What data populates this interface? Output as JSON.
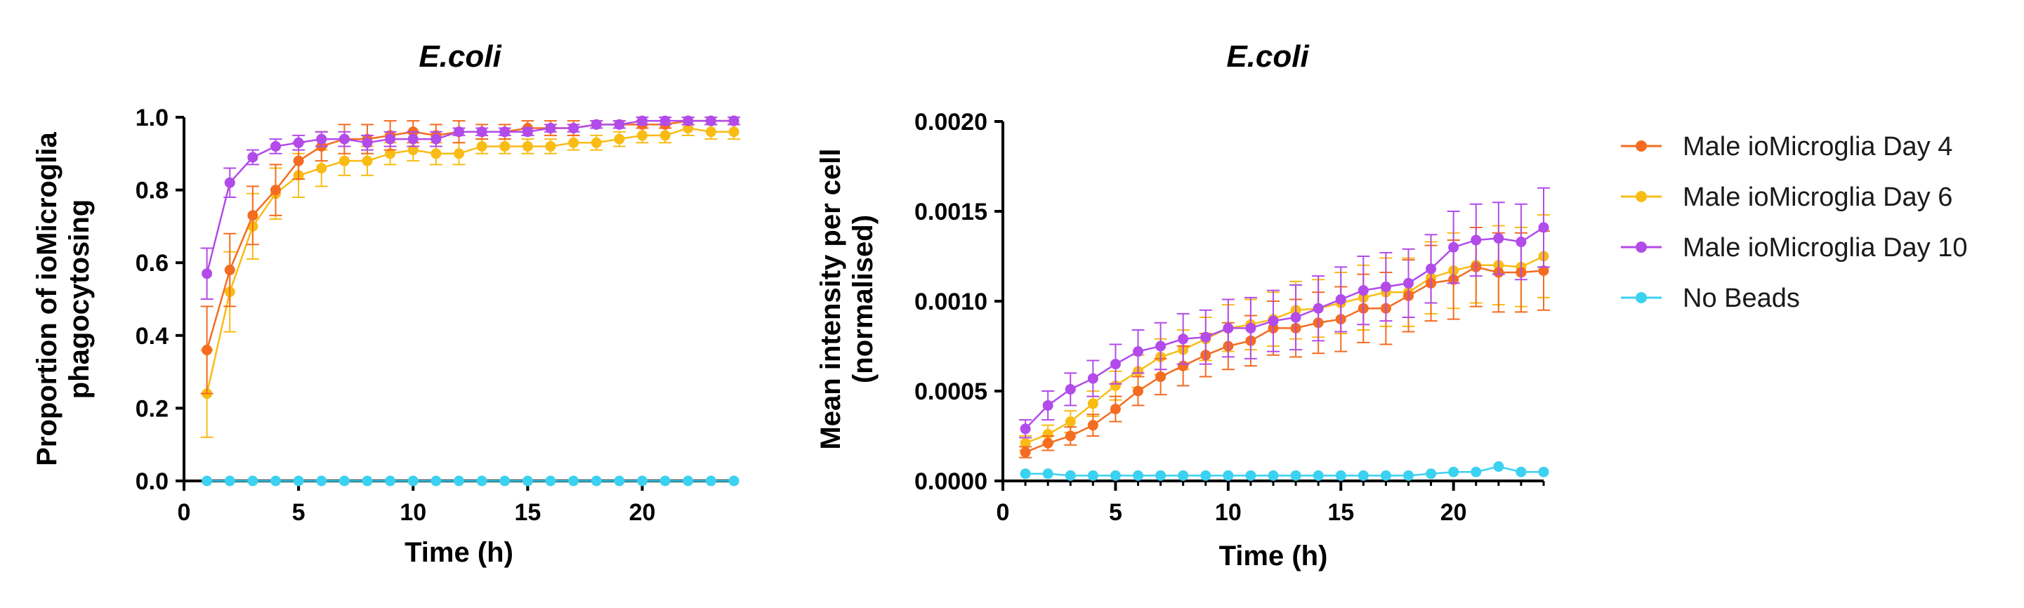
{
  "chart_data": [
    {
      "type": "line",
      "title": "E.coli",
      "xlabel": "Time (h)",
      "ylabel": [
        "Proportion of ioMicroglia",
        "phagocytosing"
      ],
      "xlim": [
        0,
        24
      ],
      "ylim": [
        0,
        1.0
      ],
      "xticks": [
        0,
        5,
        10,
        15,
        20
      ],
      "xtick_labels": [
        "0",
        "5",
        "10",
        "15",
        "20"
      ],
      "yticks": [
        0,
        0.2,
        0.4,
        0.6,
        0.8,
        1.0
      ],
      "ytick_labels": [
        "0.0",
        "0.2",
        "0.4",
        "0.6",
        "0.8",
        "1.0"
      ],
      "x": [
        1,
        2,
        3,
        4,
        5,
        6,
        7,
        8,
        9,
        10,
        11,
        12,
        13,
        14,
        15,
        16,
        17,
        18,
        19,
        20,
        21,
        22,
        23,
        24
      ],
      "series": [
        {
          "name": "Male ioMicroglia Day 6",
          "color": "#f9bc15",
          "values": [
            0.24,
            0.52,
            0.7,
            0.79,
            0.84,
            0.86,
            0.88,
            0.88,
            0.9,
            0.91,
            0.9,
            0.9,
            0.92,
            0.92,
            0.92,
            0.92,
            0.93,
            0.93,
            0.94,
            0.95,
            0.95,
            0.97,
            0.96,
            0.96
          ],
          "errors": [
            0.12,
            0.11,
            0.09,
            0.07,
            0.06,
            0.05,
            0.04,
            0.04,
            0.03,
            0.03,
            0.03,
            0.03,
            0.02,
            0.02,
            0.02,
            0.02,
            0.02,
            0.02,
            0.02,
            0.02,
            0.02,
            0.02,
            0.02,
            0.02
          ]
        },
        {
          "name": "Male ioMicroglia Day 4",
          "color": "#f36c21",
          "values": [
            0.36,
            0.58,
            0.73,
            0.8,
            0.88,
            0.92,
            0.94,
            0.94,
            0.95,
            0.96,
            0.95,
            0.96,
            0.96,
            0.96,
            0.97,
            0.97,
            0.97,
            0.98,
            0.98,
            0.98,
            0.98,
            0.99,
            0.99,
            0.99
          ],
          "errors": [
            0.12,
            0.1,
            0.08,
            0.07,
            0.05,
            0.04,
            0.04,
            0.04,
            0.04,
            0.03,
            0.03,
            0.03,
            0.02,
            0.02,
            0.02,
            0.02,
            0.02,
            0.01,
            0.01,
            0.01,
            0.01,
            0.01,
            0.01,
            0.01
          ]
        },
        {
          "name": "Male ioMicroglia Day 10",
          "color": "#b24bea",
          "values": [
            0.57,
            0.82,
            0.89,
            0.92,
            0.93,
            0.94,
            0.94,
            0.93,
            0.94,
            0.94,
            0.94,
            0.96,
            0.96,
            0.96,
            0.96,
            0.97,
            0.97,
            0.98,
            0.98,
            0.99,
            0.99,
            0.99,
            0.99,
            0.99
          ],
          "errors": [
            0.07,
            0.04,
            0.02,
            0.02,
            0.02,
            0.02,
            0.02,
            0.02,
            0.02,
            0.02,
            0.02,
            0.01,
            0.01,
            0.01,
            0.01,
            0.01,
            0.01,
            0.01,
            0.01,
            0.01,
            0.01,
            0.01,
            0.01,
            0.01
          ]
        },
        {
          "name": "No Beads",
          "color": "#3bd1f0",
          "values": [
            0,
            0,
            0,
            0,
            0,
            0,
            0,
            0,
            0,
            0,
            0,
            0,
            0,
            0,
            0,
            0,
            0,
            0,
            0,
            0,
            0,
            0,
            0,
            0
          ],
          "errors": [
            0,
            0,
            0,
            0,
            0,
            0,
            0,
            0,
            0,
            0,
            0,
            0,
            0,
            0,
            0,
            0,
            0,
            0,
            0,
            0,
            0,
            0,
            0,
            0
          ]
        }
      ]
    },
    {
      "type": "line",
      "title": "E.coli",
      "xlabel": "Time (h)",
      "ylabel": [
        "Mean intensity per cell",
        "(normalised)"
      ],
      "xlim": [
        0,
        24
      ],
      "ylim": [
        0,
        0.002
      ],
      "xticks": [
        0,
        5,
        10,
        15,
        20
      ],
      "xtick_labels": [
        "0",
        "5",
        "10",
        "15",
        "20"
      ],
      "yticks": [
        0,
        0.0005,
        0.001,
        0.0015,
        0.002
      ],
      "ytick_labels": [
        "0.0000",
        "0.0005",
        "0.0010",
        "0.0015",
        "0.0020"
      ],
      "x": [
        1,
        2,
        3,
        4,
        5,
        6,
        7,
        8,
        9,
        10,
        11,
        12,
        13,
        14,
        15,
        16,
        17,
        18,
        19,
        20,
        21,
        22,
        23,
        24
      ],
      "series": [
        {
          "name": "Male ioMicroglia Day 6",
          "color": "#f9bc15",
          "values": [
            0.00021,
            0.00026,
            0.00033,
            0.00043,
            0.00053,
            0.00061,
            0.00069,
            0.00073,
            0.00079,
            0.00085,
            0.00087,
            0.0009,
            0.00095,
            0.00096,
            0.00099,
            0.00102,
            0.00105,
            0.00105,
            0.00113,
            0.00117,
            0.0012,
            0.0012,
            0.00119,
            0.00125
          ],
          "errors": [
            4e-05,
            5e-05,
            6e-05,
            7e-05,
            8e-05,
            9e-05,
            0.0001,
            0.00011,
            0.00012,
            0.00013,
            0.00014,
            0.00015,
            0.00016,
            0.00016,
            0.00017,
            0.00018,
            0.00019,
            0.00019,
            0.0002,
            0.00021,
            0.00021,
            0.00022,
            0.00022,
            0.00023
          ]
        },
        {
          "name": "Male ioMicroglia Day 4",
          "color": "#f36c21",
          "values": [
            0.00016,
            0.00021,
            0.00025,
            0.00031,
            0.0004,
            0.0005,
            0.00058,
            0.00064,
            0.0007,
            0.00075,
            0.00078,
            0.00085,
            0.00085,
            0.00088,
            0.0009,
            0.00096,
            0.00096,
            0.00103,
            0.0011,
            0.00112,
            0.00119,
            0.00116,
            0.00116,
            0.00117
          ],
          "errors": [
            3e-05,
            4e-05,
            5e-05,
            6e-05,
            7e-05,
            8e-05,
            0.0001,
            0.00011,
            0.00012,
            0.00013,
            0.00014,
            0.00015,
            0.00016,
            0.00017,
            0.00018,
            0.00019,
            0.0002,
            0.0002,
            0.00021,
            0.00022,
            0.00022,
            0.00022,
            0.00022,
            0.00022
          ]
        },
        {
          "name": "Male ioMicroglia Day 10",
          "color": "#b24bea",
          "values": [
            0.00029,
            0.00042,
            0.00051,
            0.00057,
            0.00065,
            0.00072,
            0.00075,
            0.00079,
            0.0008,
            0.00085,
            0.00085,
            0.00089,
            0.00091,
            0.00096,
            0.00101,
            0.00106,
            0.00108,
            0.0011,
            0.00118,
            0.0013,
            0.00134,
            0.00135,
            0.00133,
            0.00141
          ],
          "errors": [
            5e-05,
            8e-05,
            9e-05,
            0.0001,
            0.00011,
            0.00012,
            0.00013,
            0.00014,
            0.00015,
            0.00016,
            0.00017,
            0.00017,
            0.00018,
            0.00018,
            0.00018,
            0.00019,
            0.00019,
            0.00019,
            0.00019,
            0.0002,
            0.0002,
            0.0002,
            0.00021,
            0.00022
          ]
        },
        {
          "name": "No Beads",
          "color": "#3bd1f0",
          "values": [
            4e-05,
            4e-05,
            3e-05,
            3e-05,
            3e-05,
            3e-05,
            3e-05,
            3e-05,
            3e-05,
            3e-05,
            3e-05,
            3e-05,
            3e-05,
            3e-05,
            3e-05,
            3e-05,
            3e-05,
            3e-05,
            4e-05,
            5e-05,
            5e-05,
            8e-05,
            5e-05,
            5e-05
          ],
          "errors": [
            0,
            0,
            0,
            0,
            0,
            0,
            0,
            0,
            0,
            0,
            0,
            0,
            0,
            0,
            0,
            0,
            0,
            0,
            0,
            0,
            0,
            0,
            0,
            0
          ]
        }
      ]
    }
  ],
  "legend": {
    "position": "right",
    "entries": [
      {
        "label": "Male ioMicroglia Day 4",
        "color": "#f36c21"
      },
      {
        "label": "Male ioMicroglia Day 6",
        "color": "#f9bc15"
      },
      {
        "label": "Male ioMicroglia Day 10",
        "color": "#b24bea"
      },
      {
        "label": "No Beads",
        "color": "#3bd1f0"
      }
    ]
  }
}
